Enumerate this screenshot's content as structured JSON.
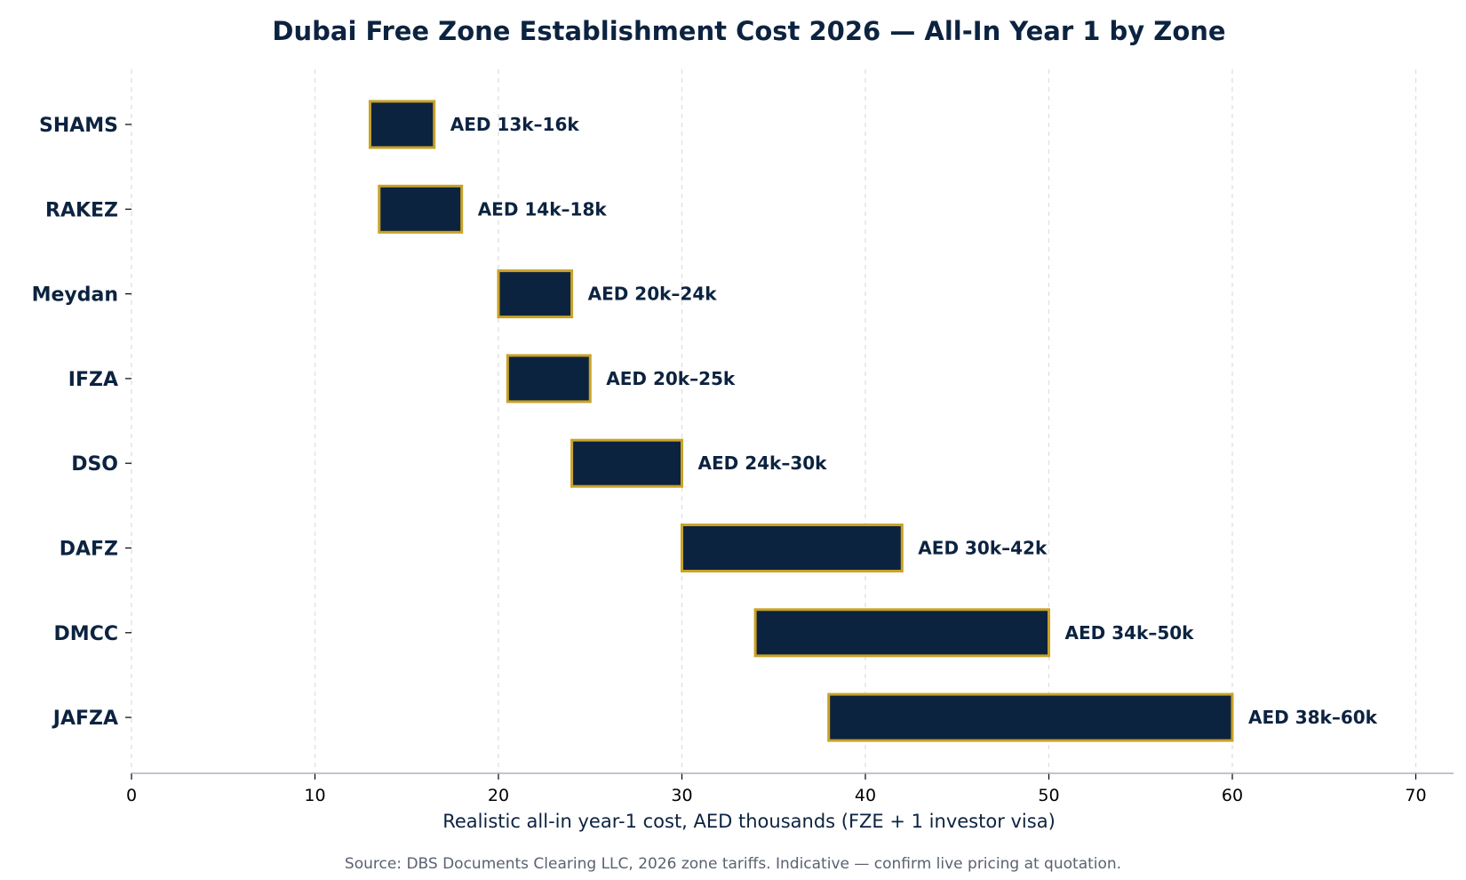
{
  "chart_data": {
    "type": "bar",
    "orientation": "horizontal",
    "bar_style": "floating-range",
    "title": "Dubai Free Zone Establishment Cost 2026 — All-In Year 1 by Zone",
    "xlabel": "Realistic all-in year-1 cost, AED thousands (FZE + 1 investor visa)",
    "ylabel": "",
    "xlim": [
      0,
      72
    ],
    "xticks": [
      "0",
      "10",
      "20",
      "30",
      "40",
      "50",
      "60",
      "70"
    ],
    "grid": "vertical dashed",
    "categories": [
      "SHAMS",
      "RAKEZ",
      "Meydan",
      "IFZA",
      "DSO",
      "DAFZ",
      "DMCC",
      "JAFZA"
    ],
    "ranges": [
      [
        13,
        16.5
      ],
      [
        13.5,
        18
      ],
      [
        20,
        24
      ],
      [
        20.5,
        25
      ],
      [
        24,
        30
      ],
      [
        30,
        42
      ],
      [
        34,
        50
      ],
      [
        38,
        60
      ]
    ],
    "data_labels": [
      "AED 13k–16k",
      "AED 14k–18k",
      "AED 20k–24k",
      "AED 20k–25k",
      "AED 24k–30k",
      "AED 30k–42k",
      "AED 34k–50k",
      "AED 38k–60k"
    ],
    "source_note": "Source: DBS Documents Clearing LLC, 2026 zone tariffs. Indicative — confirm live pricing at quotation.",
    "colors": {
      "bar_fill": "#0c2340",
      "bar_edge": "#c9a227",
      "text": "#0c2340",
      "grid": "#dddddd",
      "axis": "#aab0c0",
      "note": "#5a6270"
    }
  }
}
